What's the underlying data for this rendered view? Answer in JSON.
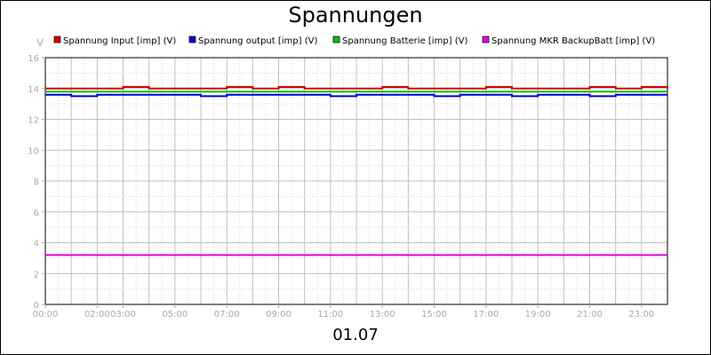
{
  "chart_data": {
    "type": "line",
    "title": "Spannungen",
    "xlabel": "01.07",
    "ylabel": "V",
    "ylim": [
      0,
      16
    ],
    "yticks": [
      0,
      2,
      4,
      6,
      8,
      10,
      12,
      14,
      16
    ],
    "xlim": [
      "00:00",
      "24:00"
    ],
    "xticks": [
      "00:00",
      "02:00",
      "03:00",
      "05:00",
      "07:00",
      "09:00",
      "11:00",
      "13:00",
      "15:00",
      "17:00",
      "19:00",
      "21:00",
      "23:00"
    ],
    "grid": true,
    "legend_position": "top",
    "x": [
      "00:00",
      "01:00",
      "02:00",
      "03:00",
      "04:00",
      "05:00",
      "06:00",
      "07:00",
      "08:00",
      "09:00",
      "10:00",
      "11:00",
      "12:00",
      "13:00",
      "14:00",
      "15:00",
      "16:00",
      "17:00",
      "18:00",
      "19:00",
      "20:00",
      "21:00",
      "22:00",
      "23:00",
      "24:00"
    ],
    "series": [
      {
        "name": "Spannung Input [imp] (V)",
        "color": "#d40000",
        "values": [
          14.0,
          14.0,
          14.0,
          14.1,
          14.0,
          14.0,
          14.0,
          14.1,
          14.0,
          14.1,
          14.0,
          14.0,
          14.0,
          14.1,
          14.0,
          14.0,
          14.0,
          14.1,
          14.0,
          14.0,
          14.0,
          14.1,
          14.0,
          14.1,
          14.0
        ]
      },
      {
        "name": "Spannung output [imp] (V)",
        "color": "#0000d4",
        "values": [
          13.6,
          13.5,
          13.6,
          13.6,
          13.6,
          13.6,
          13.5,
          13.6,
          13.6,
          13.6,
          13.6,
          13.5,
          13.6,
          13.6,
          13.6,
          13.5,
          13.6,
          13.6,
          13.5,
          13.6,
          13.6,
          13.5,
          13.6,
          13.6,
          13.6
        ]
      },
      {
        "name": "Spannung Batterie [imp] (V)",
        "color": "#00c000",
        "values": [
          13.8,
          13.8,
          13.8,
          13.8,
          13.8,
          13.8,
          13.8,
          13.8,
          13.8,
          13.8,
          13.8,
          13.8,
          13.8,
          13.8,
          13.8,
          13.8,
          13.8,
          13.8,
          13.8,
          13.8,
          13.8,
          13.8,
          13.8,
          13.8,
          13.8
        ]
      },
      {
        "name": "Spannung MKR BackupBatt [imp] (V)",
        "color": "#e000e0",
        "values": [
          3.2,
          3.2,
          3.2,
          3.2,
          3.2,
          3.2,
          3.2,
          3.2,
          3.2,
          3.2,
          3.2,
          3.2,
          3.2,
          3.2,
          3.2,
          3.2,
          3.2,
          3.2,
          3.2,
          3.2,
          3.2,
          3.2,
          3.2,
          3.2,
          3.2
        ]
      }
    ]
  }
}
